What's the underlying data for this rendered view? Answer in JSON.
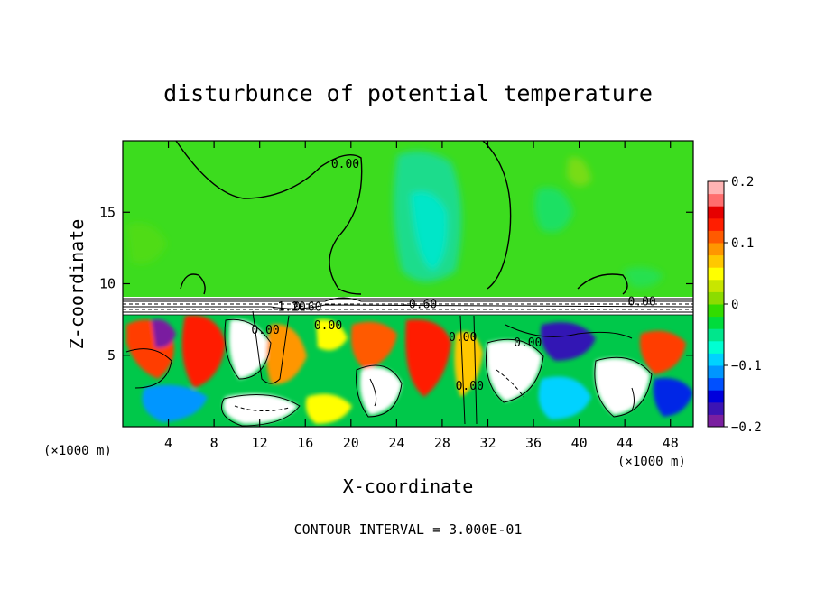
{
  "chart_data": {
    "type": "heatmap",
    "title": "disturbunce of potential temperature",
    "xlabel": "X-coordinate",
    "ylabel": "Z-coordinate",
    "x_unit": "(×1000 m)",
    "z_unit": "(×1000 m)",
    "xlim": [
      0,
      50
    ],
    "ylim": [
      0,
      20
    ],
    "x_ticks": [
      4,
      8,
      12,
      16,
      20,
      24,
      28,
      32,
      36,
      40,
      44,
      48
    ],
    "y_ticks": [
      5,
      10,
      15
    ],
    "colorbar": {
      "range": [
        -0.2,
        0.2
      ],
      "ticks": [
        {
          "value": 0.2,
          "label": "0.2"
        },
        {
          "value": 0.1,
          "label": "0.1"
        },
        {
          "value": 0,
          "label": "0"
        },
        {
          "value": -0.1,
          "label": "−0.1"
        },
        {
          "value": -0.2,
          "label": "−0.2"
        }
      ],
      "colors": [
        "#7a1fa0",
        "#3c14b4",
        "#0000dc",
        "#0050ff",
        "#0096ff",
        "#00d2ff",
        "#00ffd2",
        "#00e68c",
        "#00dc3c",
        "#32dc00",
        "#8cdc00",
        "#c8e600",
        "#ffff00",
        "#ffc800",
        "#ff9600",
        "#ff5a00",
        "#ff1e00",
        "#e60000",
        "#ff6e6e",
        "#ffb4b4"
      ]
    },
    "contour_interval": "CONTOUR INTERVAL = 3.000E-01",
    "contour_labels": [
      {
        "x": 19.5,
        "z": 18.1,
        "label": "0.00"
      },
      {
        "x": 14.5,
        "z": 8.1,
        "label": "-1.20"
      },
      {
        "x": 16.2,
        "z": 8.1,
        "label": "0.60"
      },
      {
        "x": 26.0,
        "z": 8.3,
        "label": "-0.60"
      },
      {
        "x": 45.5,
        "z": 8.5,
        "label": "0.00"
      },
      {
        "x": 35.5,
        "z": 5.6,
        "label": "0.00"
      },
      {
        "x": 29.8,
        "z": 6.0,
        "label": "0.00"
      },
      {
        "x": 30.4,
        "z": 2.6,
        "label": "0.00"
      },
      {
        "x": 12.5,
        "z": 6.5,
        "label": "0.00"
      },
      {
        "x": 18.0,
        "z": 6.8,
        "label": "0.00"
      }
    ]
  }
}
